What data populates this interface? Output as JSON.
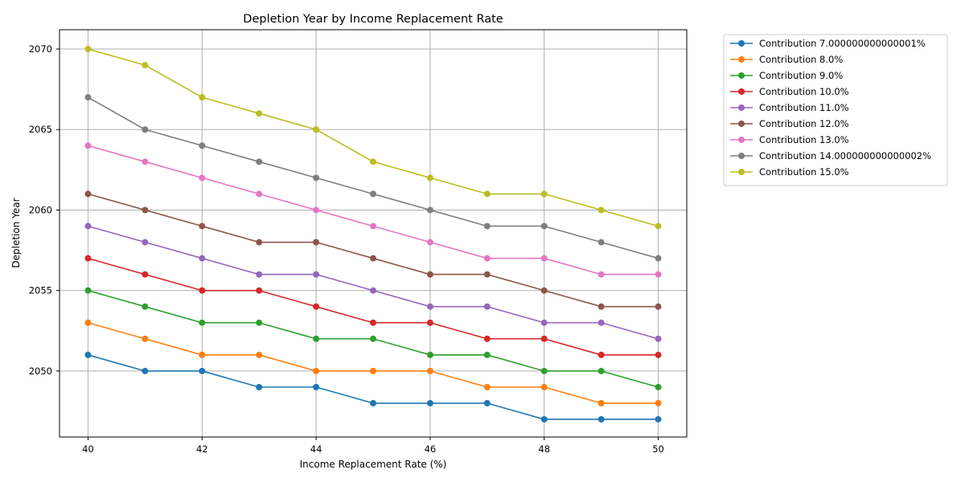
{
  "chart_data": {
    "type": "line",
    "title": "Depletion Year by Income Replacement Rate",
    "xlabel": "Income Replacement Rate (%)",
    "ylabel": "Depletion Year",
    "x": [
      40,
      41,
      42,
      43,
      44,
      45,
      46,
      47,
      48,
      49,
      50
    ],
    "xlim": [
      39.5,
      50.5
    ],
    "ylim": [
      2045.9,
      2071.2
    ],
    "xticks": [
      40,
      42,
      44,
      46,
      48,
      50
    ],
    "yticks": [
      2050,
      2055,
      2060,
      2065,
      2070
    ],
    "grid": true,
    "legend_position": "outside-top-right",
    "marker": "circle",
    "series": [
      {
        "name": "Contribution 7.000000000000001%",
        "color": "#1f77b4",
        "values": [
          2051,
          2050,
          2050,
          2049,
          2049,
          2048,
          2048,
          2048,
          2047,
          2047,
          2047
        ]
      },
      {
        "name": "Contribution 8.0%",
        "color": "#ff7f0e",
        "values": [
          2053,
          2052,
          2051,
          2051,
          2050,
          2050,
          2050,
          2049,
          2049,
          2048,
          2048
        ]
      },
      {
        "name": "Contribution 9.0%",
        "color": "#2ca02c",
        "values": [
          2055,
          2054,
          2053,
          2053,
          2052,
          2052,
          2051,
          2051,
          2050,
          2050,
          2049
        ]
      },
      {
        "name": "Contribution 10.0%",
        "color": "#d62728",
        "values": [
          2057,
          2056,
          2055,
          2055,
          2054,
          2053,
          2053,
          2052,
          2052,
          2051,
          2051
        ]
      },
      {
        "name": "Contribution 11.0%",
        "color": "#9467bd",
        "values": [
          2059,
          2058,
          2057,
          2056,
          2056,
          2055,
          2054,
          2054,
          2053,
          2053,
          2052
        ]
      },
      {
        "name": "Contribution 12.0%",
        "color": "#8c564b",
        "values": [
          2061,
          2060,
          2059,
          2058,
          2058,
          2057,
          2056,
          2056,
          2055,
          2054,
          2054
        ]
      },
      {
        "name": "Contribution 13.0%",
        "color": "#e377c2",
        "values": [
          2064,
          2063,
          2062,
          2061,
          2060,
          2059,
          2058,
          2057,
          2057,
          2056,
          2056
        ]
      },
      {
        "name": "Contribution 14.000000000000002%",
        "color": "#7f7f7f",
        "values": [
          2067,
          2065,
          2064,
          2063,
          2062,
          2061,
          2060,
          2059,
          2059,
          2058,
          2057
        ]
      },
      {
        "name": "Contribution 15.0%",
        "color": "#bcbd22",
        "values": [
          2070,
          2069,
          2067,
          2066,
          2065,
          2063,
          2062,
          2061,
          2061,
          2060,
          2059
        ]
      }
    ]
  }
}
